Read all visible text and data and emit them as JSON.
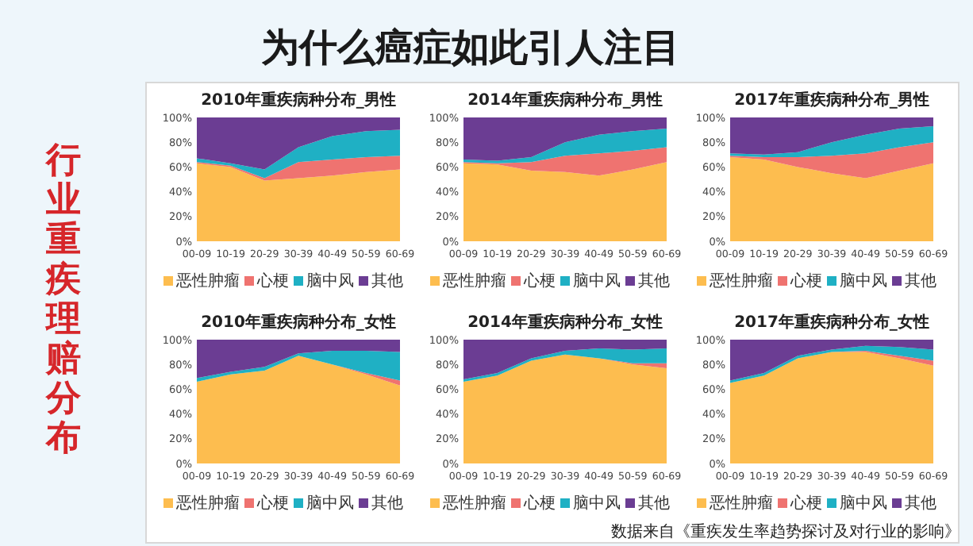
{
  "chart_data": [
    {
      "type": "other",
      "title": "为什么癌症如此引人注目",
      "annotations": [
        "行业重疾理赔分布"
      ]
    },
    {
      "type": "area",
      "title": "2010年重疾病种分布_男性",
      "categories": [
        "00-09",
        "10-19",
        "20-29",
        "30-39",
        "40-49",
        "50-59",
        "60-69"
      ],
      "stacked": true,
      "legend": "bottom",
      "ylim": [
        0,
        100
      ],
      "yticks": [
        {
          "value": 0,
          "label": "0%"
        },
        {
          "value": 20,
          "label": "20%"
        },
        {
          "value": 40,
          "label": "40%"
        },
        {
          "value": 60,
          "label": "60%"
        },
        {
          "value": 80,
          "label": "80%"
        },
        {
          "value": 100,
          "label": "100%"
        }
      ],
      "series": [
        {
          "name": "恶性肿瘤",
          "color": "#fdbd4f",
          "values": [
            63,
            60,
            49,
            51,
            53,
            56,
            58
          ]
        },
        {
          "name": "心梗",
          "color": "#ef7370",
          "values": [
            1,
            1,
            2,
            13,
            13,
            12,
            11
          ]
        },
        {
          "name": "脑中风",
          "color": "#1fb0c4",
          "values": [
            3,
            2,
            7,
            12,
            19,
            21,
            21
          ]
        },
        {
          "name": "其他",
          "color": "#6b3d93",
          "values": [
            33,
            37,
            42,
            24,
            15,
            11,
            10
          ]
        }
      ]
    },
    {
      "type": "area",
      "title": "2014年重疾病种分布_男性",
      "categories": [
        "00-09",
        "10-19",
        "20-29",
        "30-39",
        "40-49",
        "50-59",
        "60-69"
      ],
      "stacked": true,
      "legend": "bottom",
      "ylim": [
        0,
        100
      ],
      "yticks": [
        {
          "value": 0,
          "label": "0%"
        },
        {
          "value": 20,
          "label": "20%"
        },
        {
          "value": 40,
          "label": "40%"
        },
        {
          "value": 60,
          "label": "60%"
        },
        {
          "value": 80,
          "label": "80%"
        },
        {
          "value": 100,
          "label": "100%"
        }
      ],
      "series": [
        {
          "name": "恶性肿瘤",
          "color": "#fdbd4f",
          "values": [
            63,
            62,
            57,
            56,
            53,
            58,
            64
          ]
        },
        {
          "name": "心梗",
          "color": "#ef7370",
          "values": [
            1,
            1,
            7,
            13,
            18,
            15,
            12
          ]
        },
        {
          "name": "脑中风",
          "color": "#1fb0c4",
          "values": [
            2,
            2,
            4,
            11,
            15,
            16,
            15
          ]
        },
        {
          "name": "其他",
          "color": "#6b3d93",
          "values": [
            34,
            35,
            32,
            20,
            14,
            11,
            9
          ]
        }
      ]
    },
    {
      "type": "area",
      "title": "2017年重疾病种分布_男性",
      "categories": [
        "00-09",
        "10-19",
        "20-29",
        "30-39",
        "40-49",
        "50-59",
        "60-69"
      ],
      "stacked": true,
      "legend": "bottom",
      "ylim": [
        0,
        100
      ],
      "yticks": [
        {
          "value": 0,
          "label": "0%"
        },
        {
          "value": 20,
          "label": "20%"
        },
        {
          "value": 40,
          "label": "40%"
        },
        {
          "value": 60,
          "label": "60%"
        },
        {
          "value": 80,
          "label": "80%"
        },
        {
          "value": 100,
          "label": "100%"
        }
      ],
      "series": [
        {
          "name": "恶性肿瘤",
          "color": "#fdbd4f",
          "values": [
            68,
            66,
            60,
            55,
            51,
            57,
            63
          ]
        },
        {
          "name": "心梗",
          "color": "#ef7370",
          "values": [
            1,
            2,
            8,
            14,
            20,
            19,
            17
          ]
        },
        {
          "name": "脑中风",
          "color": "#1fb0c4",
          "values": [
            2,
            2,
            4,
            11,
            15,
            15,
            13
          ]
        },
        {
          "name": "其他",
          "color": "#6b3d93",
          "values": [
            29,
            30,
            28,
            20,
            14,
            9,
            7
          ]
        }
      ]
    },
    {
      "type": "area",
      "title": "2010年重疾病种分布_女性",
      "categories": [
        "00-09",
        "10-19",
        "20-29",
        "30-39",
        "40-49",
        "50-59",
        "60-69"
      ],
      "stacked": true,
      "legend": "bottom",
      "ylim": [
        0,
        100
      ],
      "yticks": [
        {
          "value": 0,
          "label": "0%"
        },
        {
          "value": 20,
          "label": "20%"
        },
        {
          "value": 40,
          "label": "40%"
        },
        {
          "value": 60,
          "label": "60%"
        },
        {
          "value": 80,
          "label": "80%"
        },
        {
          "value": 100,
          "label": "100%"
        }
      ],
      "series": [
        {
          "name": "恶性肿瘤",
          "color": "#fdbd4f",
          "values": [
            66,
            72,
            75,
            87,
            80,
            72,
            63
          ]
        },
        {
          "name": "心梗",
          "color": "#ef7370",
          "values": [
            0,
            0,
            0,
            0,
            0,
            1,
            4
          ]
        },
        {
          "name": "脑中风",
          "color": "#1fb0c4",
          "values": [
            3,
            2,
            3,
            2,
            11,
            18,
            23
          ]
        },
        {
          "name": "其他",
          "color": "#6b3d93",
          "values": [
            31,
            26,
            22,
            11,
            9,
            9,
            10
          ]
        }
      ]
    },
    {
      "type": "area",
      "title": "2014年重疾病种分布_女性",
      "categories": [
        "00-09",
        "10-19",
        "20-29",
        "30-39",
        "40-49",
        "50-59",
        "60-69"
      ],
      "stacked": true,
      "legend": "bottom",
      "ylim": [
        0,
        100
      ],
      "yticks": [
        {
          "value": 0,
          "label": "0%"
        },
        {
          "value": 20,
          "label": "20%"
        },
        {
          "value": 40,
          "label": "40%"
        },
        {
          "value": 60,
          "label": "60%"
        },
        {
          "value": 80,
          "label": "80%"
        },
        {
          "value": 100,
          "label": "100%"
        }
      ],
      "series": [
        {
          "name": "恶性肿瘤",
          "color": "#fdbd4f",
          "values": [
            66,
            71,
            83,
            88,
            85,
            80,
            77
          ]
        },
        {
          "name": "心梗",
          "color": "#ef7370",
          "values": [
            0,
            0,
            0,
            0,
            0,
            1,
            4
          ]
        },
        {
          "name": "脑中风",
          "color": "#1fb0c4",
          "values": [
            2,
            2,
            2,
            3,
            8,
            11,
            12
          ]
        },
        {
          "name": "其他",
          "color": "#6b3d93",
          "values": [
            32,
            27,
            15,
            9,
            7,
            8,
            7
          ]
        }
      ]
    },
    {
      "type": "area",
      "title": "2017年重疾病种分布_女性",
      "categories": [
        "00-09",
        "10-19",
        "20-29",
        "30-39",
        "40-49",
        "50-59",
        "60-69"
      ],
      "stacked": true,
      "legend": "bottom",
      "ylim": [
        0,
        100
      ],
      "yticks": [
        {
          "value": 0,
          "label": "0%"
        },
        {
          "value": 20,
          "label": "20%"
        },
        {
          "value": 40,
          "label": "40%"
        },
        {
          "value": 60,
          "label": "60%"
        },
        {
          "value": 80,
          "label": "80%"
        },
        {
          "value": 100,
          "label": "100%"
        }
      ],
      "annotations": [
        "数据来自《重疾发生率趋势探讨及对行业的影响》"
      ],
      "series": [
        {
          "name": "恶性肿瘤",
          "color": "#fdbd4f",
          "values": [
            65,
            71,
            85,
            90,
            90,
            85,
            79
          ]
        },
        {
          "name": "心梗",
          "color": "#ef7370",
          "values": [
            0,
            0,
            0,
            0,
            1,
            2,
            4
          ]
        },
        {
          "name": "脑中风",
          "color": "#1fb0c4",
          "values": [
            2,
            2,
            2,
            2,
            4,
            7,
            9
          ]
        },
        {
          "name": "其他",
          "color": "#6b3d93",
          "values": [
            33,
            27,
            13,
            8,
            5,
            6,
            8
          ]
        }
      ]
    }
  ]
}
